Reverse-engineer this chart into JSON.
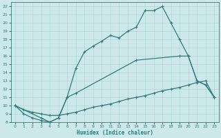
{
  "xlabel": "Humidex (Indice chaleur)",
  "bg_color": "#cce8ea",
  "grid_color": "#aed4d6",
  "line_color": "#2d7d7d",
  "xlim": [
    -0.5,
    23.5
  ],
  "ylim": [
    8,
    22.5
  ],
  "xticks": [
    0,
    1,
    2,
    3,
    4,
    5,
    6,
    7,
    8,
    9,
    10,
    11,
    12,
    13,
    14,
    15,
    16,
    17,
    18,
    19,
    20,
    21,
    22,
    23
  ],
  "yticks": [
    8,
    9,
    10,
    11,
    12,
    13,
    14,
    15,
    16,
    17,
    18,
    19,
    20,
    21,
    22
  ],
  "line1_x": [
    0,
    1,
    2,
    3,
    4,
    5,
    6,
    7,
    8,
    9,
    10,
    11,
    12,
    13,
    14,
    15,
    16,
    17,
    18,
    19,
    20,
    21,
    22,
    23
  ],
  "line1_y": [
    10,
    9,
    8.5,
    8.2,
    8.0,
    8.5,
    11.0,
    14.5,
    16.5,
    17.2,
    17.8,
    18.5,
    18.2,
    19.0,
    19.5,
    21.5,
    21.5,
    22.0,
    20.0,
    18.0,
    16.0,
    13.0,
    12.5,
    11.0
  ],
  "line2_x": [
    0,
    3,
    4,
    5,
    6,
    7,
    14,
    19,
    20,
    21,
    22,
    23
  ],
  "line2_y": [
    10,
    8.5,
    8.0,
    8.5,
    11.0,
    11.5,
    15.5,
    16.0,
    16.0,
    13.0,
    12.5,
    11.0
  ],
  "line3_x": [
    0,
    1,
    2,
    3,
    4,
    5,
    6,
    7,
    8,
    9,
    10,
    11,
    12,
    13,
    14,
    15,
    16,
    17,
    18,
    19,
    20,
    21,
    22,
    23
  ],
  "line3_y": [
    10,
    9.5,
    9.2,
    9.0,
    8.8,
    8.8,
    9.0,
    9.2,
    9.5,
    9.8,
    10.0,
    10.2,
    10.5,
    10.8,
    11.0,
    11.2,
    11.5,
    11.8,
    12.0,
    12.2,
    12.5,
    12.8,
    13.0,
    11.0
  ]
}
